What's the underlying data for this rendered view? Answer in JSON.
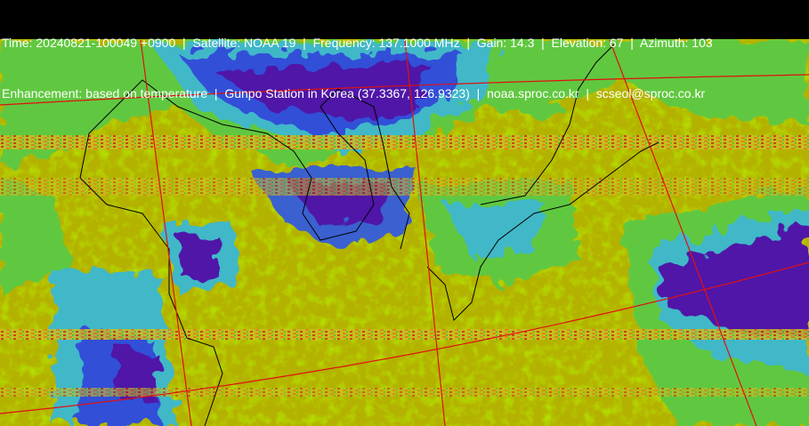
{
  "header": {
    "lines": [
      "Time: 20240821-100049 +0900  |  Satellite: NOAA 19  |  Frequency: 137.1000 MHz  |  Gain: 14.3  |  Elevation: 67  |  Azimuth: 103",
      "Enhancement: based on temperature  |  Gunpo Station in Korea (37.3367, 126.9323)  |  noaa.sproc.co.kr  |  scseol@sproc.co.kr"
    ]
  }
}
